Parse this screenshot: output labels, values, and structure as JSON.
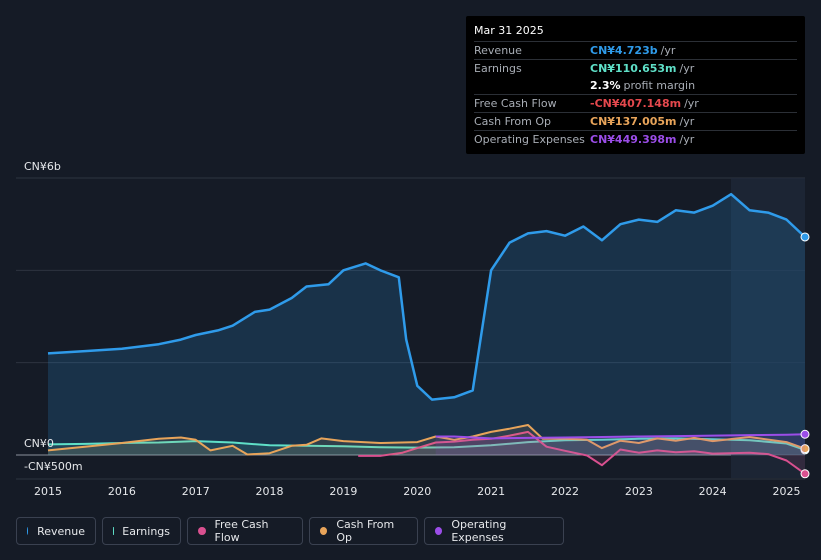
{
  "chart_data": {
    "type": "area",
    "y_unit": "CN¥",
    "y_tick_labels": [
      "CN¥6b",
      "CN¥0",
      "-CN¥500m"
    ],
    "ylim": [
      -500000000,
      6000000000
    ],
    "x_tick_labels": [
      "2015",
      "2016",
      "2017",
      "2018",
      "2019",
      "2020",
      "2021",
      "2022",
      "2023",
      "2024",
      "2025"
    ],
    "grid": true,
    "legend_position": "bottom",
    "series": [
      {
        "name": "Revenue",
        "color": "#2f9bea",
        "points": [
          [
            2015.0,
            2200000000.0
          ],
          [
            2015.5,
            2250000000.0
          ],
          [
            2016.0,
            2300000000.0
          ],
          [
            2016.5,
            2400000000.0
          ],
          [
            2016.8,
            2500000000.0
          ],
          [
            2017.0,
            2600000000.0
          ],
          [
            2017.3,
            2700000000.0
          ],
          [
            2017.5,
            2800000000.0
          ],
          [
            2017.8,
            3100000000.0
          ],
          [
            2018.0,
            3150000000.0
          ],
          [
            2018.3,
            3400000000.0
          ],
          [
            2018.5,
            3650000000.0
          ],
          [
            2018.8,
            3700000000.0
          ],
          [
            2019.0,
            4000000000.0
          ],
          [
            2019.3,
            4150000000.0
          ],
          [
            2019.5,
            4000000000.0
          ],
          [
            2019.75,
            3850000000.0
          ],
          [
            2019.85,
            2500000000.0
          ],
          [
            2020.0,
            1500000000.0
          ],
          [
            2020.2,
            1200000000.0
          ],
          [
            2020.5,
            1250000000.0
          ],
          [
            2020.75,
            1400000000.0
          ],
          [
            2021.0,
            4000000000.0
          ],
          [
            2021.25,
            4600000000.0
          ],
          [
            2021.5,
            4800000000.0
          ],
          [
            2021.75,
            4850000000.0
          ],
          [
            2022.0,
            4750000000.0
          ],
          [
            2022.25,
            4950000000.0
          ],
          [
            2022.5,
            4650000000.0
          ],
          [
            2022.75,
            5000000000.0
          ],
          [
            2023.0,
            5100000000.0
          ],
          [
            2023.25,
            5050000000.0
          ],
          [
            2023.5,
            5300000000.0
          ],
          [
            2023.75,
            5250000000.0
          ],
          [
            2024.0,
            5400000000.0
          ],
          [
            2024.25,
            5650000000.0
          ],
          [
            2024.5,
            5300000000.0
          ],
          [
            2024.75,
            5250000000.0
          ],
          [
            2025.0,
            5100000000.0
          ],
          [
            2025.25,
            4723000000.0
          ]
        ]
      },
      {
        "name": "Earnings",
        "color": "#5fe0c8",
        "points": [
          [
            2015.0,
            230000000.0
          ],
          [
            2015.5,
            240000000.0
          ],
          [
            2016.0,
            260000000.0
          ],
          [
            2016.5,
            270000000.0
          ],
          [
            2017.0,
            300000000.0
          ],
          [
            2017.5,
            270000000.0
          ],
          [
            2018.0,
            210000000.0
          ],
          [
            2018.5,
            200000000.0
          ],
          [
            2019.0,
            190000000.0
          ],
          [
            2019.5,
            170000000.0
          ],
          [
            2020.0,
            160000000.0
          ],
          [
            2020.5,
            170000000.0
          ],
          [
            2021.0,
            210000000.0
          ],
          [
            2021.5,
            280000000.0
          ],
          [
            2022.0,
            320000000.0
          ],
          [
            2022.5,
            330000000.0
          ],
          [
            2023.0,
            350000000.0
          ],
          [
            2023.5,
            360000000.0
          ],
          [
            2024.0,
            340000000.0
          ],
          [
            2024.5,
            320000000.0
          ],
          [
            2025.0,
            250000000.0
          ],
          [
            2025.25,
            110653000.0
          ]
        ]
      },
      {
        "name": "Free Cash Flow",
        "color": "#d9508f",
        "points": [
          [
            2019.2,
            -20000000.0
          ],
          [
            2019.5,
            -20000000.0
          ],
          [
            2019.8,
            50000000.0
          ],
          [
            2020.0,
            150000000.0
          ],
          [
            2020.25,
            270000000.0
          ],
          [
            2020.5,
            290000000.0
          ],
          [
            2020.75,
            330000000.0
          ],
          [
            2021.0,
            350000000.0
          ],
          [
            2021.25,
            420000000.0
          ],
          [
            2021.5,
            500000000.0
          ],
          [
            2021.75,
            180000000.0
          ],
          [
            2022.0,
            90000000.0
          ],
          [
            2022.3,
            -10000000.0
          ],
          [
            2022.5,
            -220000000.0
          ],
          [
            2022.75,
            120000000.0
          ],
          [
            2023.0,
            50000000.0
          ],
          [
            2023.25,
            100000000.0
          ],
          [
            2023.5,
            60000000.0
          ],
          [
            2023.75,
            80000000.0
          ],
          [
            2024.0,
            30000000.0
          ],
          [
            2024.5,
            50000000.0
          ],
          [
            2024.75,
            20000000.0
          ],
          [
            2025.0,
            -120000000.0
          ],
          [
            2025.25,
            -407148000.0
          ]
        ]
      },
      {
        "name": "Cash From Op",
        "color": "#e8a45a",
        "points": [
          [
            2015.0,
            100000000.0
          ],
          [
            2015.5,
            180000000.0
          ],
          [
            2016.0,
            260000000.0
          ],
          [
            2016.5,
            350000000.0
          ],
          [
            2016.8,
            380000000.0
          ],
          [
            2017.0,
            330000000.0
          ],
          [
            2017.2,
            100000000.0
          ],
          [
            2017.5,
            200000000.0
          ],
          [
            2017.7,
            10000000.0
          ],
          [
            2018.0,
            40000000.0
          ],
          [
            2018.3,
            200000000.0
          ],
          [
            2018.5,
            220000000.0
          ],
          [
            2018.7,
            360000000.0
          ],
          [
            2019.0,
            300000000.0
          ],
          [
            2019.5,
            260000000.0
          ],
          [
            2020.0,
            280000000.0
          ],
          [
            2020.25,
            400000000.0
          ],
          [
            2020.5,
            330000000.0
          ],
          [
            2020.75,
            400000000.0
          ],
          [
            2021.0,
            500000000.0
          ],
          [
            2021.25,
            570000000.0
          ],
          [
            2021.5,
            650000000.0
          ],
          [
            2021.7,
            350000000.0
          ],
          [
            2022.0,
            350000000.0
          ],
          [
            2022.3,
            330000000.0
          ],
          [
            2022.5,
            150000000.0
          ],
          [
            2022.75,
            310000000.0
          ],
          [
            2023.0,
            260000000.0
          ],
          [
            2023.25,
            360000000.0
          ],
          [
            2023.5,
            310000000.0
          ],
          [
            2023.75,
            370000000.0
          ],
          [
            2024.0,
            300000000.0
          ],
          [
            2024.5,
            390000000.0
          ],
          [
            2025.0,
            280000000.0
          ],
          [
            2025.25,
            137005000.0
          ]
        ]
      },
      {
        "name": "Operating Expenses",
        "color": "#9b4de8",
        "points": [
          [
            2020.25,
            400000000.0
          ],
          [
            2020.5,
            400000000.0
          ],
          [
            2021.0,
            360000000.0
          ],
          [
            2021.5,
            370000000.0
          ],
          [
            2022.0,
            380000000.0
          ],
          [
            2022.5,
            390000000.0
          ],
          [
            2023.0,
            400000000.0
          ],
          [
            2023.5,
            410000000.0
          ],
          [
            2024.0,
            420000000.0
          ],
          [
            2024.5,
            430000000.0
          ],
          [
            2025.0,
            440000000.0
          ],
          [
            2025.25,
            449398000.0
          ]
        ]
      }
    ]
  },
  "tooltip": {
    "date": "Mar 31 2025",
    "rows": [
      {
        "label": "Revenue",
        "value": "CN¥4.723b",
        "unit": "/yr",
        "color": "#2f9bea"
      },
      {
        "label": "Earnings",
        "value": "CN¥110.653m",
        "unit": "/yr",
        "color": "#5fe0c8"
      },
      {
        "label": "",
        "value": "2.3%",
        "unit": "profit margin",
        "color": "#ffffff"
      },
      {
        "label": "Free Cash Flow",
        "value": "-CN¥407.148m",
        "unit": "/yr",
        "color": "#e5484d"
      },
      {
        "label": "Cash From Op",
        "value": "CN¥137.005m",
        "unit": "/yr",
        "color": "#e8a45a"
      },
      {
        "label": "Operating Expenses",
        "value": "CN¥449.398m",
        "unit": "/yr",
        "color": "#9b4de8"
      }
    ]
  },
  "legend": [
    {
      "label": "Revenue",
      "color": "#2f9bea"
    },
    {
      "label": "Earnings",
      "color": "#5fe0c8"
    },
    {
      "label": "Free Cash Flow",
      "color": "#d9508f"
    },
    {
      "label": "Cash From Op",
      "color": "#e8a45a"
    },
    {
      "label": "Operating Expenses",
      "color": "#9b4de8"
    }
  ]
}
